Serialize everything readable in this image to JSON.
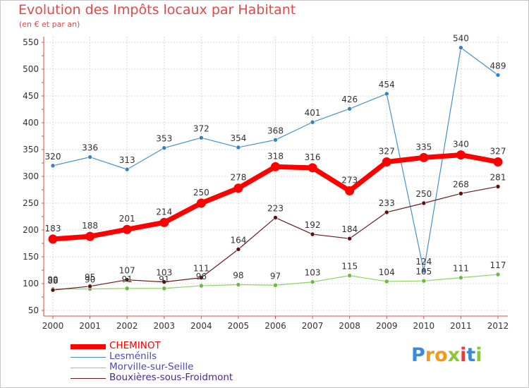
{
  "header": {
    "title": "Evolution des Impôts locaux par Habitant",
    "subtitle": "(en € et par an)"
  },
  "chart_data": {
    "type": "line",
    "title": "Evolution des Impôts locaux par Habitant",
    "subtitle": "(en € et par an)",
    "xlabel": "",
    "ylabel": "",
    "ylim": [
      50,
      550
    ],
    "yticks": [
      50,
      100,
      150,
      200,
      250,
      300,
      350,
      400,
      450,
      500,
      550
    ],
    "grid": true,
    "legend_position": "bottom-left",
    "categories": [
      "2000",
      "2001",
      "2002",
      "2003",
      "2004",
      "2005",
      "2006",
      "2007",
      "2008",
      "2009",
      "2010",
      "2011",
      "2012"
    ],
    "series": [
      {
        "name": "CHEMINOT",
        "color": "#ff0000",
        "values": [
          183,
          188,
          201,
          214,
          250,
          278,
          318,
          316,
          273,
          327,
          335,
          340,
          327
        ]
      },
      {
        "name": "Lesménils",
        "color": "#4a90c8",
        "values": [
          320,
          336,
          313,
          353,
          372,
          354,
          368,
          401,
          426,
          454,
          124,
          540,
          489
        ]
      },
      {
        "name": "Morville-sur-Seille",
        "color": "#8cd460",
        "values": [
          90,
          90,
          91,
          91,
          96,
          98,
          97,
          103,
          115,
          104,
          105,
          111,
          117
        ]
      },
      {
        "name": "Bouxières-sous-Froidmont",
        "color": "#6a1a1a",
        "values": [
          88,
          95,
          107,
          103,
          111,
          164,
          223,
          192,
          184,
          233,
          250,
          268,
          281
        ]
      }
    ],
    "point_labels": [
      [
        "183",
        "188",
        "201",
        "214",
        "250",
        "278",
        "318",
        "316",
        "273",
        "327",
        "335",
        "340",
        "327"
      ],
      [
        "320",
        "336",
        "313",
        "353",
        "372",
        "354",
        "368",
        "401",
        "426",
        "454",
        "124",
        "540",
        "489"
      ],
      [
        "90",
        "90",
        "91",
        "91",
        "96",
        "98",
        "97",
        "103",
        "115",
        "104",
        "105",
        "111",
        "117"
      ],
      [
        "88",
        "95",
        "107",
        "103",
        "111",
        "164",
        "223",
        "192",
        "184",
        "233",
        "250",
        "268",
        "281"
      ]
    ]
  },
  "legend": {
    "items": [
      {
        "label": "CHEMINOT",
        "color": "#ff0000"
      },
      {
        "label": "Lesménils",
        "color": "#4a90c8"
      },
      {
        "label": "Morville-sur-Seille",
        "color": "#8cd460"
      },
      {
        "label": "Bouxières-sous-Froidmont",
        "color": "#6a1a1a"
      }
    ]
  },
  "logo": {
    "text": "Proxiti",
    "letters": [
      "P",
      "r",
      "o",
      "x",
      "i",
      "t",
      "i"
    ],
    "colors": [
      "#3b8ad8",
      "#f29a1e",
      "#f29a1e",
      "#8cc63f",
      "#e83c3c",
      "#3b8ad8",
      "#8cc63f"
    ]
  }
}
